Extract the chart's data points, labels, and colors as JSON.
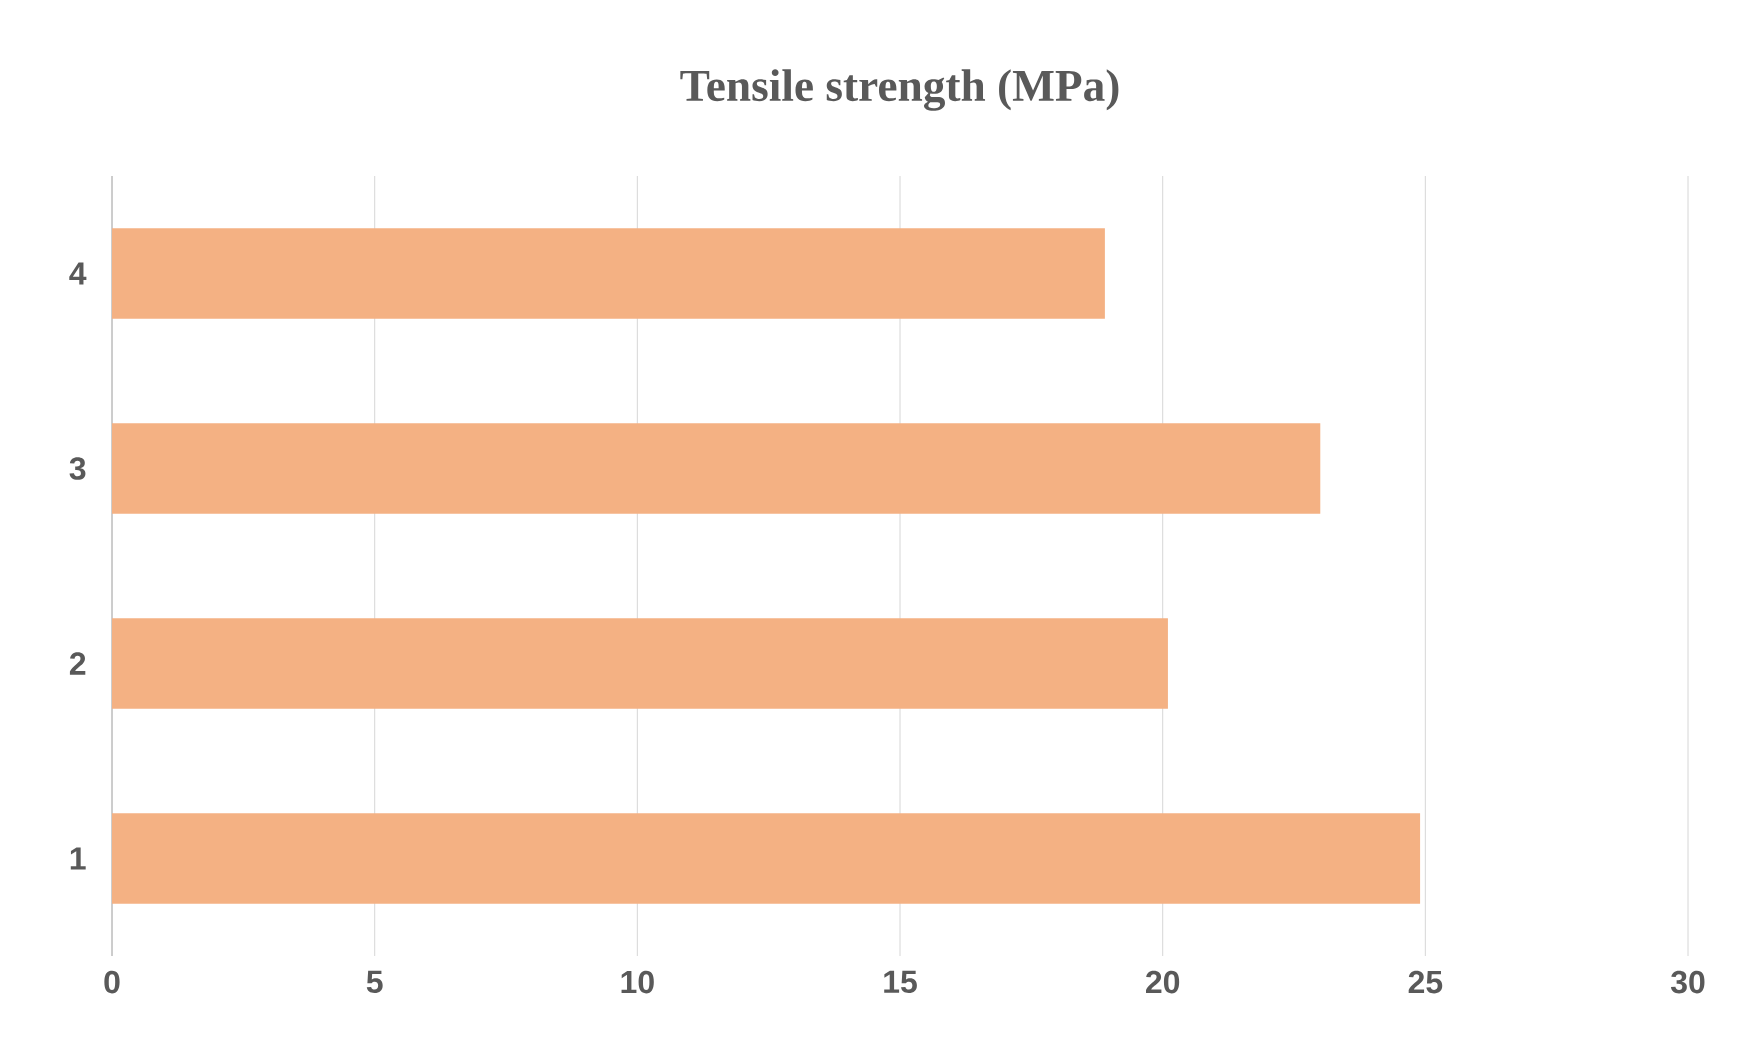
{
  "chart_data": {
    "type": "bar",
    "orientation": "horizontal",
    "title": "Tensile strength (MPa)",
    "categories": [
      "4",
      "3",
      "2",
      "1"
    ],
    "values": [
      18.9,
      23.0,
      20.1,
      24.9
    ],
    "color": "#f4b183",
    "xlim": [
      0,
      30
    ],
    "xticks": [
      0,
      5,
      10,
      15,
      20,
      25,
      30
    ],
    "grid": "x"
  }
}
